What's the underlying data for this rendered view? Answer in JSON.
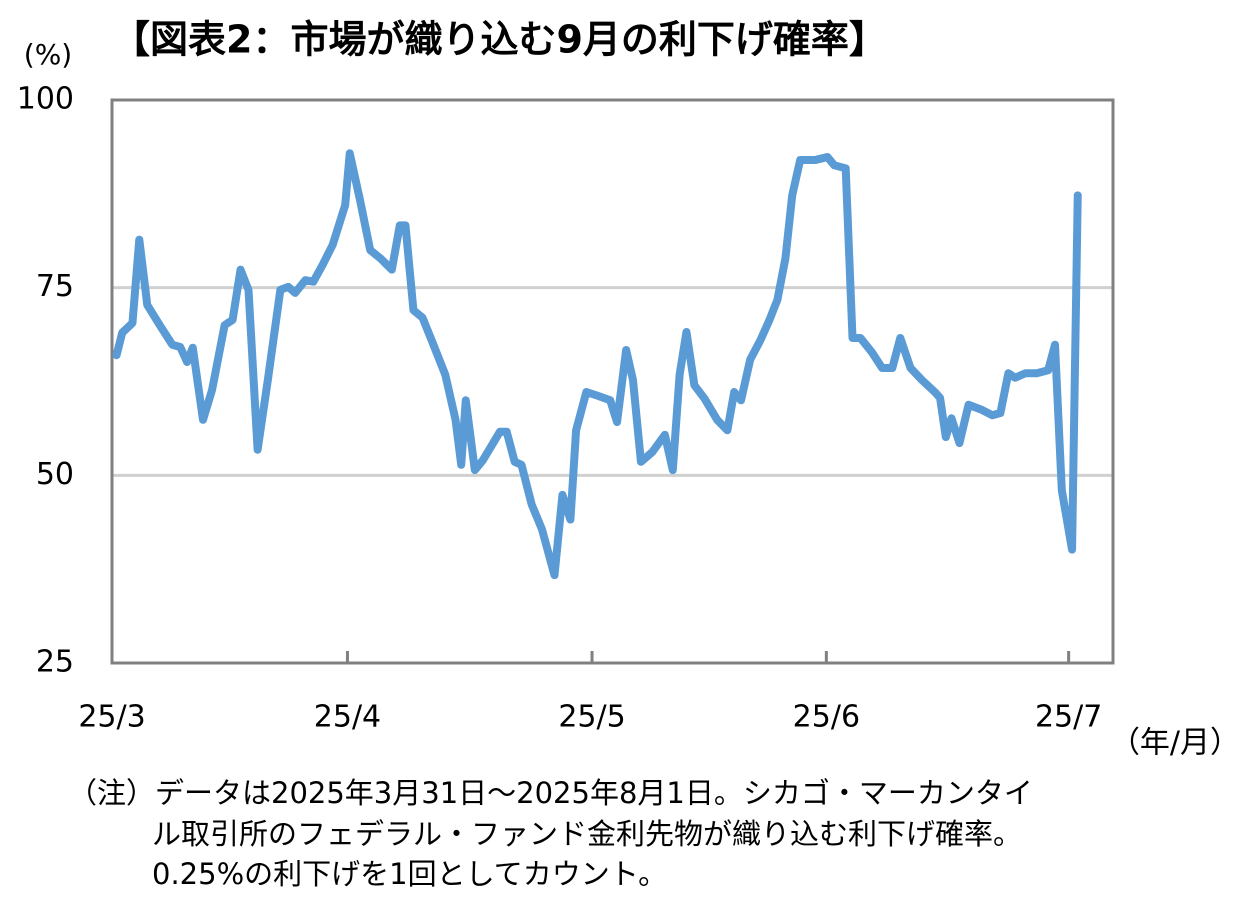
{
  "chart_data": {
    "type": "line",
    "title": "【図表2：市場が織り込む9月の利下げ確率】",
    "y_label": "(%)",
    "x_label": "（年/月）",
    "note": [
      "（注）データは2025年3月31日～2025年8月1日。シカゴ・マーカンタイ",
      "ル取引所のフェデラル・ファンド金利先物が織り込む利下げ確率。",
      "0.25%の利下げを1回としてカウント。"
    ],
    "x": [
      0.4,
      0.9,
      1.8,
      2.4,
      3.1,
      4.2,
      5.3,
      6.0,
      6.6,
      7.1,
      8.0,
      8.8,
      9.9,
      10.6,
      11.3,
      12.0,
      12.8,
      13.7,
      14.8,
      15.5,
      16.1,
      17.0,
      17.7,
      18.5,
      19.4,
      20.5,
      20.9,
      21.8,
      22.7,
      23.6,
      24.6,
      25.3,
      25.8,
      26.5,
      27.3,
      28.1,
      29.3,
      30.2,
      30.7,
      31.1,
      31.9,
      32.6,
      34.1,
      34.7,
      35.4,
      36.0,
      36.9,
      37.8,
      38.9,
      39.6,
      40.3,
      40.8,
      41.7,
      42.7,
      43.8,
      44.4,
      45.2,
      45.8,
      46.5,
      47.5,
      48.6,
      49.3,
      49.9,
      50.5,
      51.2,
      52.1,
      53.2,
      54.1,
      54.7,
      55.3,
      56.1,
      57.0,
      57.8,
      58.5,
      59.2,
      59.8,
      60.5,
      61.8,
      62.9,
      63.5,
      64.0,
      64.5,
      65.1,
      65.8,
      66.8,
      67.7,
      68.6,
      69.3,
      70.2,
      71.2,
      72.4,
      72.8,
      73.3,
      73.8,
      74.5,
      75.3,
      76.5,
      77.4,
      78.1,
      78.8,
      79.4,
      80.3,
      81.3,
      82.3,
      82.9,
      83.5,
      84.4,
      84.9
    ],
    "series": [
      {
        "name": "利下げ確率",
        "color": "#5b9bd5",
        "values": [
          66.0,
          69.0,
          70.3,
          81.4,
          72.7,
          70.0,
          67.4,
          67.1,
          65.1,
          67.0,
          57.4,
          61.4,
          70.0,
          70.7,
          77.4,
          74.7,
          53.4,
          62.7,
          74.7,
          75.1,
          74.3,
          76.0,
          75.8,
          78.0,
          80.7,
          86.0,
          92.9,
          86.7,
          80.0,
          78.9,
          77.4,
          83.3,
          83.3,
          72.0,
          71.0,
          68.0,
          63.4,
          57.4,
          51.4,
          60.0,
          50.7,
          52.0,
          55.8,
          55.8,
          51.8,
          51.4,
          46.1,
          42.8,
          36.7,
          47.4,
          44.1,
          56.0,
          61.1,
          60.6,
          60.0,
          57.1,
          66.7,
          62.7,
          51.8,
          53.1,
          55.4,
          50.7,
          63.4,
          69.1,
          62.0,
          60.2,
          57.4,
          56.0,
          61.1,
          60.0,
          65.4,
          68.0,
          70.7,
          73.4,
          78.9,
          87.3,
          92.0,
          92.0,
          92.4,
          91.3,
          91.1,
          90.9,
          68.3,
          68.3,
          66.4,
          64.3,
          64.3,
          68.3,
          64.3,
          62.7,
          61.0,
          60.3,
          55.1,
          57.6,
          54.3,
          59.4,
          58.7,
          58.0,
          58.3,
          63.6,
          63.0,
          63.6,
          63.6,
          64.0,
          67.4,
          48.0,
          40.1,
          87.3
        ]
      }
    ],
    "xlim": [
      0,
      88
    ],
    "xticks": [
      {
        "value": 0,
        "label": "25/3"
      },
      {
        "value": 20.7,
        "label": "25/4"
      },
      {
        "value": 42.2,
        "label": "25/5"
      },
      {
        "value": 62.8,
        "label": "25/6"
      },
      {
        "value": 84.1,
        "label": "25/7"
      }
    ],
    "ylim": [
      25,
      100
    ],
    "yticks": [
      25,
      50,
      75,
      100
    ],
    "grid": true
  }
}
